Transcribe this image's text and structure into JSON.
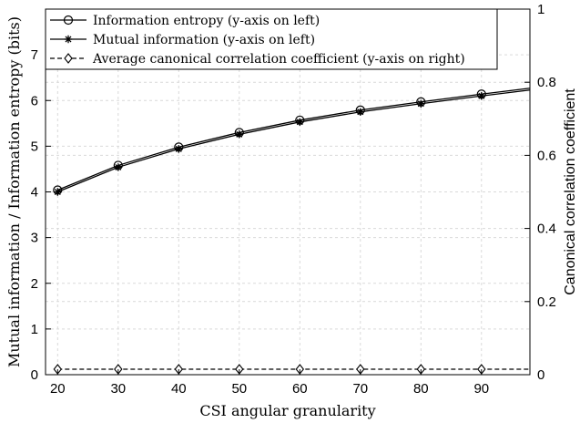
{
  "chart_data": {
    "type": "line",
    "xlabel": "CSI angular granularity",
    "ylabel": "Mutual information / Information entropy (bits)",
    "y2label": "Canonical correlation coefficient",
    "xlim": [
      18,
      98
    ],
    "ylim": [
      0,
      8
    ],
    "y2lim": [
      0,
      1
    ],
    "x_ticks": [
      20,
      30,
      40,
      50,
      60,
      70,
      80,
      90
    ],
    "y_ticks": [
      0,
      1,
      2,
      3,
      4,
      5,
      6,
      7
    ],
    "y2_ticks": [
      0,
      0.2,
      0.4,
      0.6,
      0.8,
      1
    ],
    "grid": true,
    "legend_position": "top-left",
    "x": [
      20,
      30,
      40,
      50,
      60,
      70,
      80,
      90
    ],
    "series": [
      {
        "name": "Information entropy (y-axis on left)",
        "axis": "left",
        "marker": "circle",
        "values": [
          4.04,
          4.58,
          4.98,
          5.3,
          5.57,
          5.79,
          5.97,
          6.14
        ],
        "end_value": 6.27,
        "line_style": "solid"
      },
      {
        "name": "Mutual information (y-axis on left)",
        "axis": "left",
        "marker": "star",
        "values": [
          4.0,
          4.54,
          4.94,
          5.26,
          5.53,
          5.75,
          5.93,
          6.1
        ],
        "end_value": 6.23,
        "line_style": "solid"
      },
      {
        "name": "Average canonical correlation coefficient (y-axis on right)",
        "axis": "right",
        "marker": "diamond",
        "values": [
          0.015,
          0.015,
          0.015,
          0.015,
          0.015,
          0.015,
          0.015,
          0.015
        ],
        "end_value": 0.015,
        "line_style": "dashed"
      }
    ]
  }
}
